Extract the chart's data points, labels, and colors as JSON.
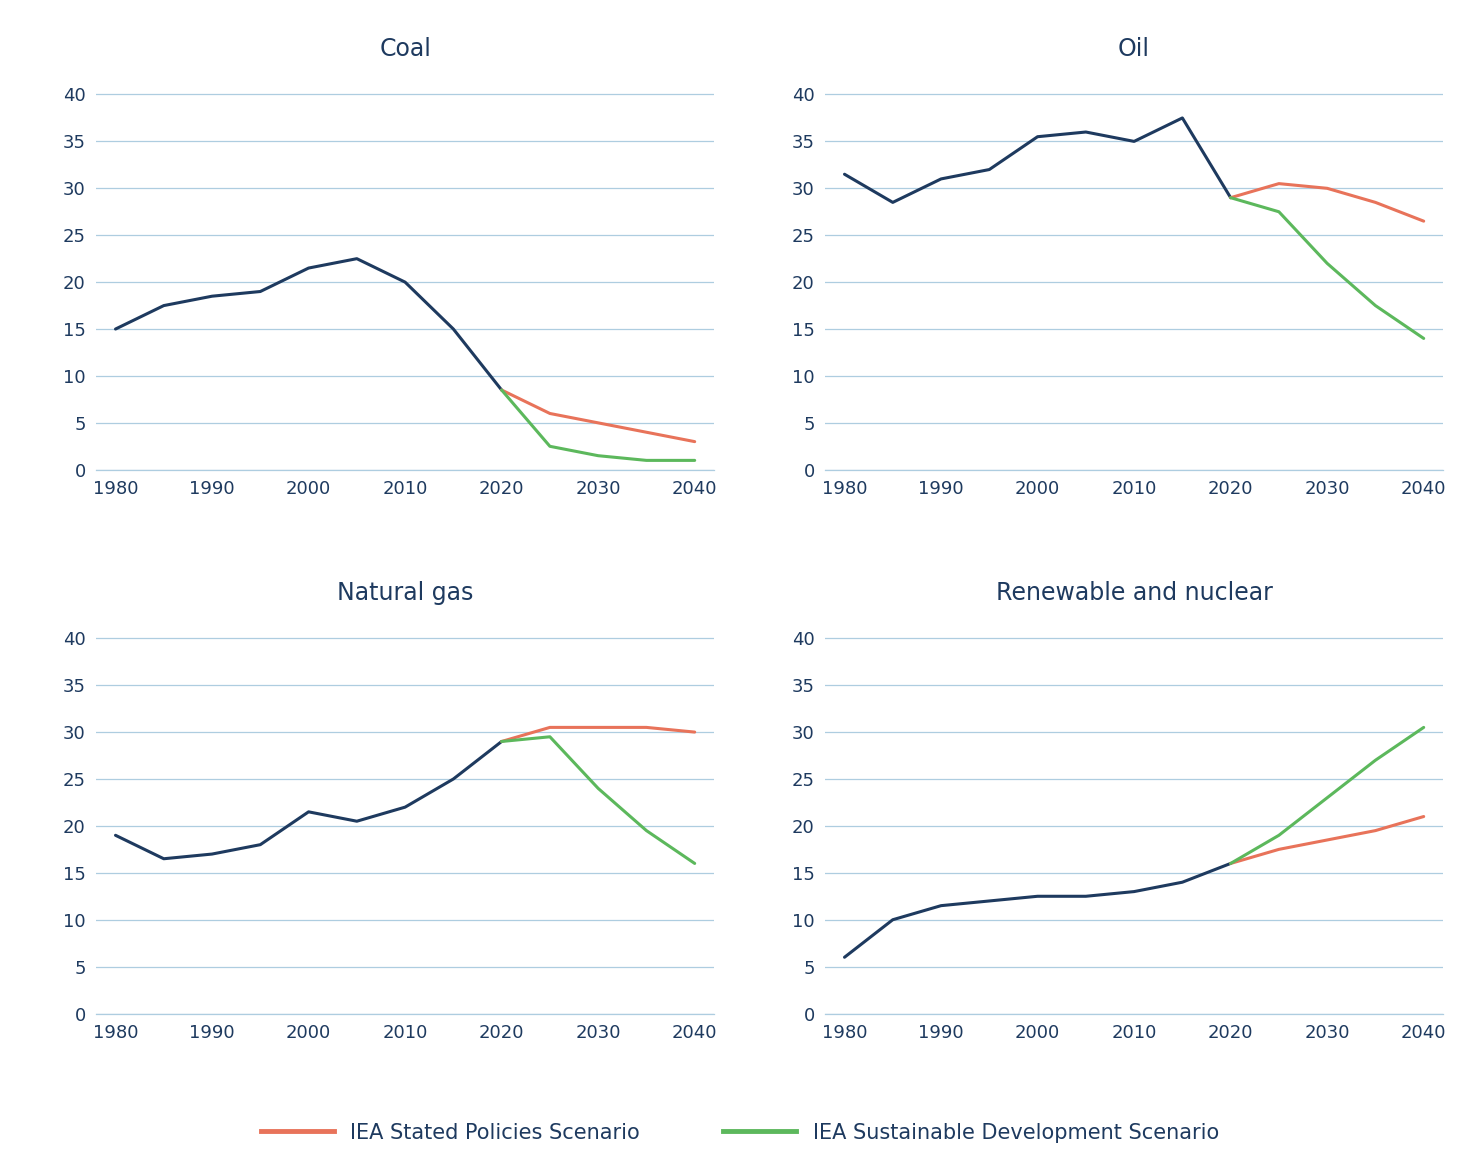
{
  "background_color": "#ffffff",
  "title_color": "#1e3a5f",
  "axis_color": "#1e3a5f",
  "grid_color": "#aecde0",
  "line_color_historical": "#1e3a5f",
  "line_color_stated": "#e8735a",
  "line_color_sustainable": "#5cb85c",
  "line_width": 2.2,
  "subtitles": [
    "Coal",
    "Oil",
    "Natural gas",
    "Renewable and nuclear"
  ],
  "subtitle_fontsize": 17,
  "tick_fontsize": 13,
  "legend_fontsize": 15,
  "ylim": [
    0,
    42
  ],
  "yticks": [
    0,
    5,
    10,
    15,
    20,
    25,
    30,
    35,
    40
  ],
  "xlim": [
    1978,
    2042
  ],
  "xticks": [
    1980,
    1990,
    2000,
    2010,
    2020,
    2030,
    2040
  ],
  "coal": {
    "historical_x": [
      1980,
      1985,
      1990,
      1995,
      2000,
      2005,
      2010,
      2015,
      2020
    ],
    "historical_y": [
      15,
      17.5,
      18.5,
      19,
      21.5,
      22.5,
      20,
      15,
      8.5
    ],
    "stated_x": [
      2020,
      2025,
      2030,
      2035,
      2040
    ],
    "stated_y": [
      8.5,
      6.0,
      5.0,
      4.0,
      3.0
    ],
    "sustainable_x": [
      2020,
      2025,
      2030,
      2035,
      2040
    ],
    "sustainable_y": [
      8.5,
      2.5,
      1.5,
      1.0,
      1.0
    ]
  },
  "oil": {
    "historical_x": [
      1980,
      1985,
      1990,
      1995,
      2000,
      2005,
      2010,
      2015,
      2020
    ],
    "historical_y": [
      31.5,
      28.5,
      31,
      32,
      35.5,
      36,
      35,
      37.5,
      29
    ],
    "stated_x": [
      2020,
      2025,
      2030,
      2035,
      2040
    ],
    "stated_y": [
      29,
      30.5,
      30.0,
      28.5,
      26.5
    ],
    "sustainable_x": [
      2020,
      2025,
      2030,
      2035,
      2040
    ],
    "sustainable_y": [
      29,
      27.5,
      22.0,
      17.5,
      14.0
    ]
  },
  "natgas": {
    "historical_x": [
      1980,
      1985,
      1990,
      1995,
      2000,
      2005,
      2010,
      2015,
      2020
    ],
    "historical_y": [
      19,
      16.5,
      17,
      18,
      21.5,
      20.5,
      22,
      25,
      29
    ],
    "stated_x": [
      2020,
      2025,
      2030,
      2035,
      2040
    ],
    "stated_y": [
      29,
      30.5,
      30.5,
      30.5,
      30.0
    ],
    "sustainable_x": [
      2020,
      2025,
      2030,
      2035,
      2040
    ],
    "sustainable_y": [
      29,
      29.5,
      24.0,
      19.5,
      16.0
    ]
  },
  "renew": {
    "historical_x": [
      1980,
      1985,
      1990,
      1995,
      2000,
      2005,
      2010,
      2015,
      2020
    ],
    "historical_y": [
      6,
      10,
      11.5,
      12,
      12.5,
      12.5,
      13,
      14,
      16
    ],
    "stated_x": [
      2020,
      2025,
      2030,
      2035,
      2040
    ],
    "stated_y": [
      16,
      17.5,
      18.5,
      19.5,
      21.0
    ],
    "sustainable_x": [
      2020,
      2025,
      2030,
      2035,
      2040
    ],
    "sustainable_y": [
      16,
      19,
      23,
      27,
      30.5
    ]
  },
  "legend_stated": "IEA Stated Policies Scenario",
  "legend_sustainable": "IEA Sustainable Development Scenario"
}
